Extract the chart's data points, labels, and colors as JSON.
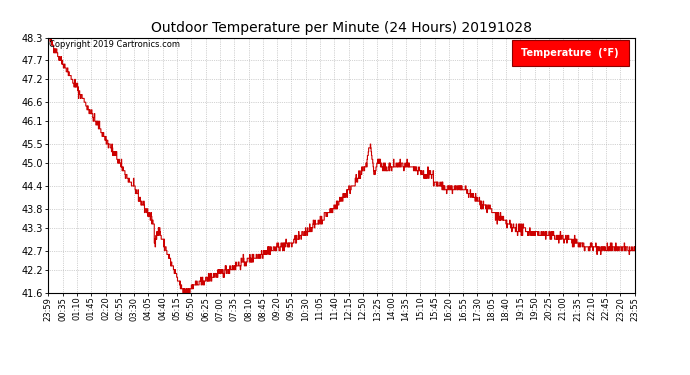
{
  "title": "Outdoor Temperature per Minute (24 Hours) 20191028",
  "copyright_text": "Copyright 2019 Cartronics.com",
  "legend_label": "Temperature  (°F)",
  "line_color": "#cc0000",
  "background_color": "#ffffff",
  "grid_color": "#aaaaaa",
  "ylim": [
    41.6,
    48.3
  ],
  "yticks": [
    41.6,
    42.2,
    42.7,
    43.3,
    43.8,
    44.4,
    45.0,
    45.5,
    46.1,
    46.6,
    47.2,
    47.7,
    48.3
  ],
  "x_labels": [
    "23:59",
    "00:35",
    "01:10",
    "01:45",
    "02:20",
    "02:55",
    "03:30",
    "04:05",
    "04:40",
    "05:15",
    "05:50",
    "06:25",
    "07:00",
    "07:35",
    "08:10",
    "08:45",
    "09:20",
    "09:55",
    "10:30",
    "11:05",
    "11:40",
    "12:15",
    "12:50",
    "13:25",
    "14:00",
    "14:35",
    "15:10",
    "15:45",
    "16:20",
    "16:55",
    "17:30",
    "18:05",
    "18:40",
    "19:15",
    "19:50",
    "20:25",
    "21:00",
    "21:35",
    "22:10",
    "22:45",
    "23:20",
    "23:55"
  ],
  "num_points": 1440,
  "seed": 42
}
